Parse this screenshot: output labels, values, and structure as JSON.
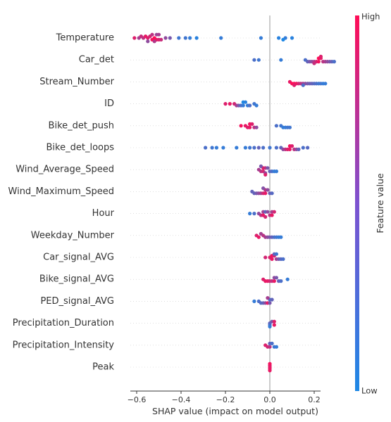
{
  "chart_data": {
    "type": "scatter",
    "title": "",
    "xlabel": "SHAP value (impact on model output)",
    "ylabel": "",
    "xlim": [
      -0.66,
      0.25
    ],
    "xticks": [
      -0.6,
      -0.4,
      -0.2,
      0.0,
      0.2
    ],
    "xtick_labels": [
      "−0.6",
      "−0.4",
      "−0.2",
      "0.0",
      "0.2"
    ],
    "colorbar": {
      "label": "Feature value",
      "high": "High",
      "low": "Low",
      "low_color": "#1e88e5",
      "high_color": "#ff0d57"
    },
    "grid": false,
    "features": [
      {
        "name": "Temperature",
        "points": [
          [
            -0.52,
            1.0
          ],
          [
            -0.53,
            0.95
          ],
          [
            -0.51,
            0.9
          ],
          [
            -0.55,
            0.85
          ],
          [
            -0.5,
            0.85
          ],
          [
            -0.54,
            0.8
          ],
          [
            -0.57,
            0.7
          ],
          [
            -0.49,
            0.75
          ],
          [
            -0.59,
            0.6
          ],
          [
            -0.47,
            0.5
          ],
          [
            -0.45,
            0.4
          ],
          [
            -0.61,
            0.85
          ],
          [
            -0.58,
            0.75
          ],
          [
            -0.56,
            0.9
          ],
          [
            -0.52,
            0.65
          ],
          [
            -0.53,
            0.7
          ],
          [
            -0.51,
            0.55
          ],
          [
            -0.5,
            0.6
          ],
          [
            -0.55,
            0.5
          ],
          [
            -0.41,
            0.15
          ],
          [
            -0.38,
            0.15
          ],
          [
            -0.36,
            0.1
          ],
          [
            -0.33,
            0.05
          ],
          [
            -0.22,
            0.1
          ],
          [
            -0.04,
            0.1
          ],
          [
            0.04,
            0.05
          ],
          [
            0.07,
            0.1
          ],
          [
            0.1,
            0.05
          ],
          [
            0.06,
            0.0
          ]
        ]
      },
      {
        "name": "Car_det",
        "points": [
          [
            -0.07,
            0.2
          ],
          [
            -0.05,
            0.15
          ],
          [
            0.05,
            0.1
          ],
          [
            0.16,
            0.2
          ],
          [
            0.17,
            0.3
          ],
          [
            0.18,
            0.4
          ],
          [
            0.19,
            0.5
          ],
          [
            0.2,
            0.6
          ],
          [
            0.21,
            0.8
          ],
          [
            0.22,
            0.95
          ],
          [
            0.22,
            1.0
          ],
          [
            0.23,
            0.9
          ],
          [
            0.24,
            0.7
          ],
          [
            0.25,
            0.6
          ],
          [
            0.26,
            0.5
          ],
          [
            0.27,
            0.4
          ],
          [
            0.28,
            0.3
          ],
          [
            0.29,
            0.2
          ],
          [
            0.23,
            0.85
          ],
          [
            0.2,
            0.75
          ]
        ]
      },
      {
        "name": "Stream_Number",
        "points": [
          [
            0.09,
            0.9
          ],
          [
            0.1,
            1.0
          ],
          [
            0.11,
            1.0
          ],
          [
            0.12,
            0.95
          ],
          [
            0.11,
            0.85
          ],
          [
            0.13,
            0.8
          ],
          [
            0.14,
            0.7
          ],
          [
            0.15,
            0.6
          ],
          [
            0.16,
            0.5
          ],
          [
            0.17,
            0.4
          ],
          [
            0.18,
            0.35
          ],
          [
            0.19,
            0.3
          ],
          [
            0.2,
            0.25
          ],
          [
            0.21,
            0.2
          ],
          [
            0.22,
            0.15
          ],
          [
            0.23,
            0.15
          ],
          [
            0.24,
            0.1
          ],
          [
            0.25,
            0.1
          ],
          [
            0.15,
            0.2
          ]
        ]
      },
      {
        "name": "ID",
        "points": [
          [
            -0.2,
            0.85
          ],
          [
            -0.18,
            0.9
          ],
          [
            -0.16,
            0.8
          ],
          [
            -0.15,
            0.6
          ],
          [
            -0.14,
            0.4
          ],
          [
            -0.13,
            0.2
          ],
          [
            -0.12,
            0.1
          ],
          [
            -0.12,
            0.0
          ],
          [
            -0.11,
            0.05
          ],
          [
            -0.1,
            0.1
          ],
          [
            -0.09,
            0.2
          ],
          [
            -0.07,
            0.15
          ],
          [
            -0.06,
            0.1
          ]
        ]
      },
      {
        "name": "Bike_det_push",
        "points": [
          [
            -0.13,
            0.95
          ],
          [
            -0.11,
            0.9
          ],
          [
            -0.1,
            0.85
          ],
          [
            -0.09,
            0.9
          ],
          [
            -0.09,
            0.95
          ],
          [
            -0.08,
            0.85
          ],
          [
            -0.07,
            0.7
          ],
          [
            -0.06,
            0.5
          ],
          [
            0.03,
            0.2
          ],
          [
            0.05,
            0.15
          ],
          [
            0.06,
            0.1
          ],
          [
            0.07,
            0.1
          ],
          [
            0.08,
            0.15
          ],
          [
            0.09,
            0.15
          ]
        ]
      },
      {
        "name": "Bike_det_loops",
        "points": [
          [
            -0.29,
            0.2
          ],
          [
            -0.26,
            0.15
          ],
          [
            -0.24,
            0.1
          ],
          [
            -0.21,
            0.1
          ],
          [
            -0.15,
            0.1
          ],
          [
            -0.11,
            0.1
          ],
          [
            -0.09,
            0.15
          ],
          [
            -0.07,
            0.2
          ],
          [
            -0.05,
            0.3
          ],
          [
            -0.03,
            0.2
          ],
          [
            0.0,
            0.15
          ],
          [
            0.03,
            0.2
          ],
          [
            0.05,
            0.3
          ],
          [
            0.06,
            0.5
          ],
          [
            0.07,
            0.7
          ],
          [
            0.08,
            0.85
          ],
          [
            0.09,
            0.9
          ],
          [
            0.09,
            0.95
          ],
          [
            0.1,
            0.85
          ],
          [
            0.11,
            0.7
          ],
          [
            0.12,
            0.5
          ],
          [
            0.13,
            0.3
          ],
          [
            0.15,
            0.2
          ],
          [
            0.17,
            0.25
          ]
        ]
      },
      {
        "name": "Wind_Average_Speed",
        "points": [
          [
            -0.05,
            0.6
          ],
          [
            -0.04,
            0.7
          ],
          [
            -0.03,
            0.8
          ],
          [
            -0.03,
            0.9
          ],
          [
            -0.02,
            0.7
          ],
          [
            -0.02,
            0.5
          ],
          [
            -0.01,
            0.4
          ],
          [
            0.0,
            0.3
          ],
          [
            0.01,
            0.2
          ],
          [
            0.02,
            0.1
          ],
          [
            0.03,
            0.1
          ],
          [
            -0.04,
            0.4
          ],
          [
            -0.02,
            0.85
          ]
        ]
      },
      {
        "name": "Wind_Maximum_Speed",
        "points": [
          [
            -0.08,
            0.3
          ],
          [
            -0.07,
            0.3
          ],
          [
            -0.06,
            0.4
          ],
          [
            -0.05,
            0.5
          ],
          [
            -0.04,
            0.6
          ],
          [
            -0.03,
            0.8
          ],
          [
            -0.02,
            0.9
          ],
          [
            -0.02,
            0.7
          ],
          [
            -0.01,
            0.5
          ],
          [
            0.0,
            0.35
          ],
          [
            0.01,
            0.25
          ],
          [
            -0.03,
            0.45
          ]
        ]
      },
      {
        "name": "Hour",
        "points": [
          [
            -0.09,
            0.1
          ],
          [
            -0.07,
            0.2
          ],
          [
            -0.05,
            0.5
          ],
          [
            -0.04,
            0.7
          ],
          [
            -0.03,
            0.9
          ],
          [
            -0.03,
            0.6
          ],
          [
            -0.02,
            0.3
          ],
          [
            -0.02,
            0.8
          ],
          [
            -0.01,
            0.5
          ],
          [
            0.0,
            0.7
          ],
          [
            0.01,
            0.9
          ],
          [
            0.01,
            0.6
          ],
          [
            0.02,
            0.8
          ]
        ]
      },
      {
        "name": "Weekday_Number",
        "points": [
          [
            -0.06,
            0.85
          ],
          [
            -0.05,
            0.9
          ],
          [
            -0.03,
            0.7
          ],
          [
            -0.02,
            0.6
          ],
          [
            -0.01,
            0.5
          ],
          [
            0.0,
            0.4
          ],
          [
            0.01,
            0.3
          ],
          [
            0.02,
            0.2
          ],
          [
            0.03,
            0.15
          ],
          [
            0.04,
            0.1
          ],
          [
            0.05,
            0.1
          ],
          [
            -0.04,
            0.6
          ]
        ]
      },
      {
        "name": "Car_signal_AVG",
        "points": [
          [
            -0.02,
            0.8
          ],
          [
            0.0,
            0.85
          ],
          [
            0.01,
            0.9
          ],
          [
            0.01,
            0.95
          ],
          [
            0.02,
            0.8
          ],
          [
            0.03,
            0.6
          ],
          [
            0.04,
            0.4
          ],
          [
            0.05,
            0.25
          ],
          [
            0.06,
            0.2
          ],
          [
            0.02,
            0.3
          ],
          [
            0.03,
            0.15
          ]
        ]
      },
      {
        "name": "Bike_signal_AVG",
        "points": [
          [
            -0.03,
            0.85
          ],
          [
            -0.02,
            0.9
          ],
          [
            -0.01,
            0.9
          ],
          [
            0.0,
            0.8
          ],
          [
            0.01,
            0.7
          ],
          [
            0.02,
            0.9
          ],
          [
            0.02,
            0.5
          ],
          [
            0.03,
            0.4
          ],
          [
            0.04,
            0.3
          ],
          [
            0.05,
            0.2
          ],
          [
            0.08,
            0.1
          ]
        ]
      },
      {
        "name": "PED_signal_AVG",
        "points": [
          [
            -0.07,
            0.1
          ],
          [
            -0.05,
            0.2
          ],
          [
            -0.04,
            0.25
          ],
          [
            -0.03,
            0.3
          ],
          [
            -0.02,
            0.5
          ],
          [
            -0.01,
            0.9
          ],
          [
            0.0,
            0.4
          ],
          [
            0.0,
            0.2
          ],
          [
            0.01,
            0.3
          ],
          [
            -0.01,
            0.6
          ]
        ]
      },
      {
        "name": "Precipitation_Duration",
        "points": [
          [
            0.0,
            0.3
          ],
          [
            0.0,
            0.2
          ],
          [
            0.01,
            0.4
          ],
          [
            0.02,
            0.9
          ],
          [
            0.02,
            0.85
          ],
          [
            0.0,
            0.1
          ]
        ]
      },
      {
        "name": "Precipitation_Intensity",
        "points": [
          [
            -0.02,
            0.85
          ],
          [
            -0.01,
            0.8
          ],
          [
            0.0,
            0.7
          ],
          [
            0.0,
            0.3
          ],
          [
            0.01,
            0.2
          ],
          [
            0.02,
            0.15
          ],
          [
            0.03,
            0.1
          ]
        ]
      },
      {
        "name": "Peak",
        "points": [
          [
            0.0,
            0.95
          ],
          [
            0.0,
            0.9
          ],
          [
            0.0,
            0.85
          ],
          [
            0.0,
            0.9
          ],
          [
            0.0,
            0.95
          ]
        ]
      }
    ]
  }
}
